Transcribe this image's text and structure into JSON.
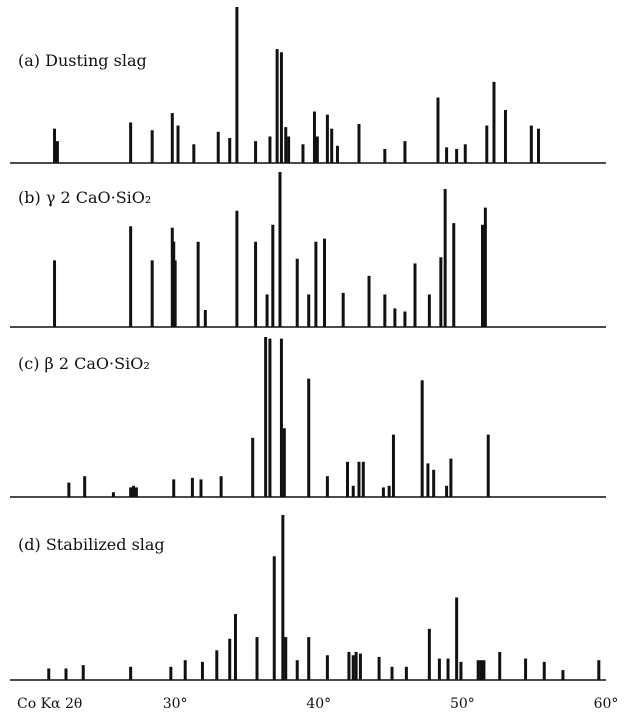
{
  "chart_data": {
    "type": "bar",
    "xlabel": "Co Kα 2θ",
    "x_tick_labels": [
      "30°",
      "40°",
      "50°",
      "60°"
    ],
    "x_ticks": [
      30,
      40,
      50,
      60
    ],
    "xlim": [
      18.5,
      60
    ],
    "grid": false,
    "panels": [
      {
        "label": "(a) Dusting slag",
        "peaks": [
          [
            21.6,
            0.22
          ],
          [
            21.8,
            0.14
          ],
          [
            26.9,
            0.26
          ],
          [
            28.4,
            0.21
          ],
          [
            29.8,
            0.32
          ],
          [
            30.2,
            0.24
          ],
          [
            31.3,
            0.12
          ],
          [
            33.0,
            0.2
          ],
          [
            33.8,
            0.16
          ],
          [
            34.3,
            1.0
          ],
          [
            35.6,
            0.14
          ],
          [
            36.6,
            0.17
          ],
          [
            37.1,
            0.73
          ],
          [
            37.4,
            0.71
          ],
          [
            37.7,
            0.23
          ],
          [
            37.9,
            0.17
          ],
          [
            38.9,
            0.12
          ],
          [
            39.7,
            0.33
          ],
          [
            39.9,
            0.17
          ],
          [
            40.6,
            0.31
          ],
          [
            40.9,
            0.22
          ],
          [
            41.3,
            0.11
          ],
          [
            42.8,
            0.25
          ],
          [
            44.6,
            0.09
          ],
          [
            46.0,
            0.14
          ],
          [
            48.3,
            0.42
          ],
          [
            48.9,
            0.1
          ],
          [
            49.6,
            0.09
          ],
          [
            50.2,
            0.12
          ],
          [
            51.7,
            0.24
          ],
          [
            52.2,
            0.52
          ],
          [
            53.0,
            0.34
          ],
          [
            54.8,
            0.24
          ],
          [
            55.3,
            0.22
          ]
        ]
      },
      {
        "label": "(b) γ 2 CaO·SiO₂",
        "peaks": [
          [
            21.6,
            0.43
          ],
          [
            26.9,
            0.65
          ],
          [
            28.4,
            0.43
          ],
          [
            29.8,
            0.64
          ],
          [
            29.9,
            0.55
          ],
          [
            30.0,
            0.43
          ],
          [
            31.6,
            0.55
          ],
          [
            32.1,
            0.11
          ],
          [
            34.3,
            0.75
          ],
          [
            35.6,
            0.55
          ],
          [
            36.4,
            0.21
          ],
          [
            36.8,
            0.66
          ],
          [
            37.3,
            1.0
          ],
          [
            38.5,
            0.44
          ],
          [
            39.3,
            0.21
          ],
          [
            39.8,
            0.55
          ],
          [
            40.4,
            0.57
          ],
          [
            41.7,
            0.22
          ],
          [
            43.5,
            0.33
          ],
          [
            44.6,
            0.21
          ],
          [
            45.3,
            0.12
          ],
          [
            46.0,
            0.1
          ],
          [
            46.7,
            0.41
          ],
          [
            47.7,
            0.21
          ],
          [
            48.5,
            0.45
          ],
          [
            48.8,
            0.89
          ],
          [
            49.4,
            0.67
          ],
          [
            51.4,
            0.66
          ],
          [
            51.6,
            0.77
          ]
        ]
      },
      {
        "label": "(c) β 2 CaO·SiO₂",
        "peaks": [
          [
            22.6,
            0.09
          ],
          [
            23.7,
            0.13
          ],
          [
            25.7,
            0.03
          ],
          [
            26.9,
            0.06
          ],
          [
            27.1,
            0.07
          ],
          [
            27.3,
            0.06
          ],
          [
            29.9,
            0.11
          ],
          [
            31.2,
            0.12
          ],
          [
            31.8,
            0.11
          ],
          [
            33.2,
            0.13
          ],
          [
            35.4,
            0.37
          ],
          [
            36.3,
            1.0
          ],
          [
            36.6,
            0.99
          ],
          [
            37.4,
            0.99
          ],
          [
            37.6,
            0.43
          ],
          [
            39.3,
            0.74
          ],
          [
            40.6,
            0.13
          ],
          [
            42.0,
            0.22
          ],
          [
            42.4,
            0.07
          ],
          [
            42.8,
            0.22
          ],
          [
            43.1,
            0.22
          ],
          [
            44.5,
            0.06
          ],
          [
            44.9,
            0.07
          ],
          [
            45.2,
            0.39
          ],
          [
            47.2,
            0.73
          ],
          [
            47.6,
            0.21
          ],
          [
            48.0,
            0.17
          ],
          [
            48.9,
            0.07
          ],
          [
            49.2,
            0.24
          ],
          [
            51.8,
            0.39
          ]
        ]
      },
      {
        "label": "(d) Stabilized slag",
        "peaks": [
          [
            21.2,
            0.07
          ],
          [
            22.4,
            0.07
          ],
          [
            23.6,
            0.09
          ],
          [
            26.9,
            0.08
          ],
          [
            29.7,
            0.08
          ],
          [
            30.7,
            0.12
          ],
          [
            31.9,
            0.11
          ],
          [
            32.9,
            0.18
          ],
          [
            33.8,
            0.25
          ],
          [
            34.2,
            0.4
          ],
          [
            35.7,
            0.26
          ],
          [
            36.9,
            0.75
          ],
          [
            37.5,
            1.0
          ],
          [
            37.7,
            0.26
          ],
          [
            38.5,
            0.12
          ],
          [
            39.3,
            0.26
          ],
          [
            40.6,
            0.15
          ],
          [
            42.1,
            0.17
          ],
          [
            42.4,
            0.15
          ],
          [
            42.6,
            0.17
          ],
          [
            42.9,
            0.16
          ],
          [
            44.2,
            0.14
          ],
          [
            45.1,
            0.08
          ],
          [
            46.1,
            0.08
          ],
          [
            47.7,
            0.31
          ],
          [
            48.4,
            0.13
          ],
          [
            49.0,
            0.13
          ],
          [
            49.6,
            0.5
          ],
          [
            49.9,
            0.11
          ],
          [
            51.1,
            0.12
          ],
          [
            51.3,
            0.12
          ],
          [
            51.5,
            0.12
          ],
          [
            52.6,
            0.17
          ],
          [
            54.4,
            0.13
          ],
          [
            55.7,
            0.11
          ],
          [
            57.0,
            0.06
          ],
          [
            59.5,
            0.12
          ]
        ]
      }
    ]
  }
}
